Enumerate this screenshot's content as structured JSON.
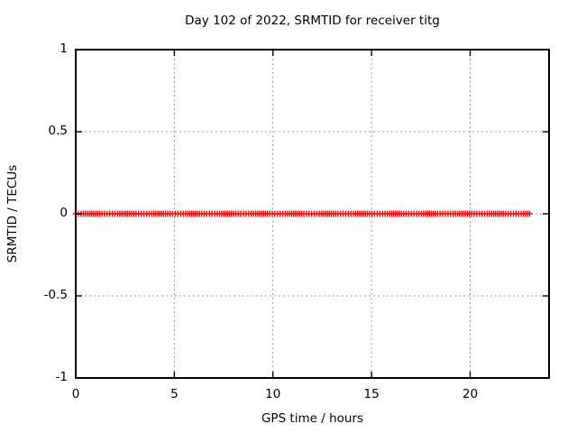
{
  "title": "Day 102 of 2022, SRMTID for receiver titg",
  "chart_data": {
    "type": "scatter",
    "title": "Day 102 of 2022, SRMTID for receiver titg",
    "xlabel": "GPS time / hours",
    "ylabel": "SRMTID / TECUs",
    "xlim": [
      0,
      24
    ],
    "ylim": [
      -1,
      1
    ],
    "grid": true,
    "legend": "none",
    "x_ticks": [
      0,
      5,
      10,
      15,
      20
    ],
    "x_tick_labels": [
      "0",
      "5",
      "10",
      "15",
      "20"
    ],
    "y_ticks": [
      -1,
      -0.5,
      0,
      0.5,
      1
    ],
    "y_tick_labels": [
      "-1",
      "-0.5",
      "0",
      "0.5",
      "1"
    ],
    "series": [
      {
        "name": "SRMTID",
        "marker": "plus",
        "color": "#ff0000",
        "y_constant": 0,
        "x_start": 0,
        "x_end": 23.0,
        "x_step": 0.115
      }
    ]
  },
  "colors": {
    "background": "#ffffff",
    "border": "#000000",
    "grid": "#9c9c9c",
    "series": "#ff0000",
    "text": "#000000"
  }
}
